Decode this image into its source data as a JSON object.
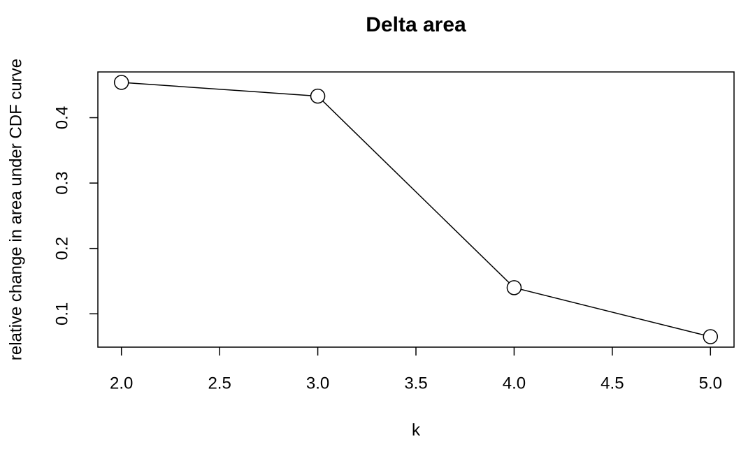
{
  "chart_data": {
    "type": "line",
    "title": "Delta area",
    "x_label": "k",
    "y_label": "relative change in area under CDF curve",
    "x": [
      2,
      3,
      4,
      5
    ],
    "series": [
      {
        "name": "Delta area",
        "color": "#000000",
        "values": [
          0.454,
          0.433,
          0.14,
          0.065
        ]
      }
    ],
    "xlim": [
      1.88,
      5.12
    ],
    "ylim": [
      0.049,
      0.47
    ],
    "xticks": [
      {
        "value": 2,
        "label": "2.0"
      },
      {
        "value": 2.5,
        "label": "2.5"
      },
      {
        "value": 3,
        "label": "3.0"
      },
      {
        "value": 3.5,
        "label": "3.5"
      },
      {
        "value": 4,
        "label": "4.0"
      },
      {
        "value": 4.5,
        "label": "4.5"
      },
      {
        "value": 5,
        "label": "5.0"
      }
    ],
    "yticks": [
      0.1,
      0.2,
      0.3,
      0.4
    ],
    "markers": "open-circle"
  }
}
